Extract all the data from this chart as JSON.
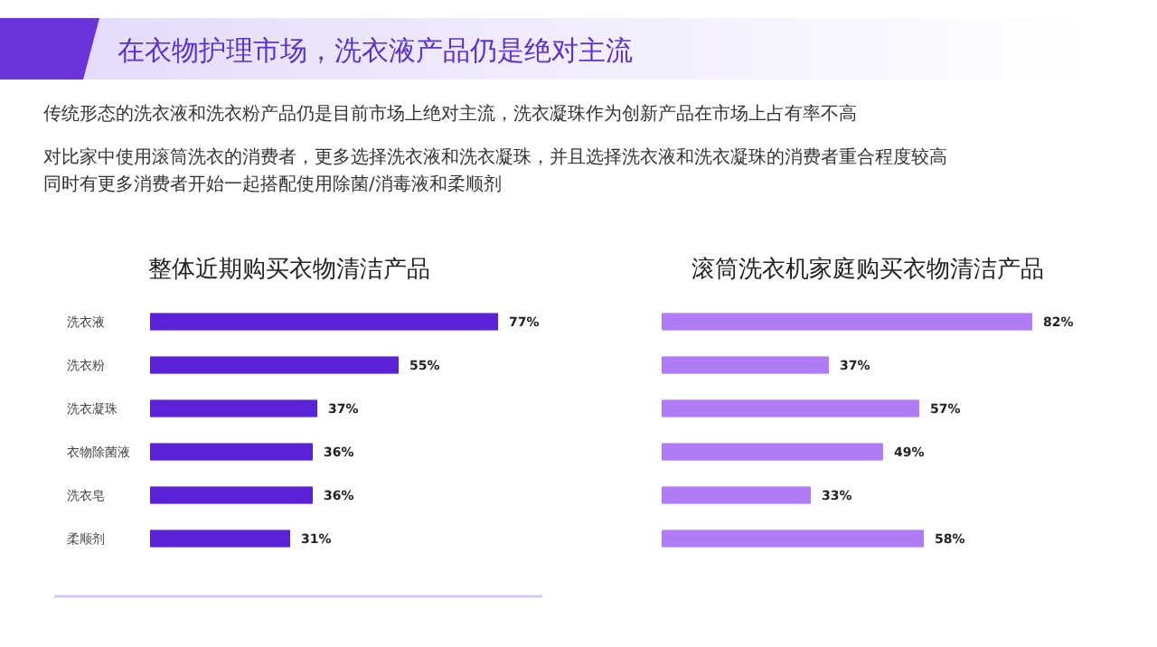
{
  "chart_data": [
    {
      "type": "other",
      "title": "在衣物护理市场，洗衣液产品仍是绝对主流",
      "annotations": [
        "传统形态的洗衣液和洗衣粉产品仍是目前市场上绝对主流，洗衣凝珠作为创新产品在市场上占有率不高",
        "对比家中使用滚筒洗衣的消费者，更多选择洗衣液和洗衣凝珠，并且选择洗衣液和洗衣凝珠的消费者重合程度较高",
        "同时有更多消费者开始一起搭配使用除菌/消毒液和柔顺剂"
      ]
    },
    {
      "type": "bar",
      "orientation": "horizontal",
      "title": "整体近期购买衣物清洁产品",
      "categories": [
        "洗衣液",
        "洗衣粉",
        "洗衣凝珠",
        "衣物除菌液",
        "洗衣皂",
        "柔顺剂"
      ],
      "series": [
        {
          "color": "#5a22d6",
          "values": [
            77,
            55,
            37,
            36,
            36,
            31
          ],
          "value_labels": [
            "77%",
            "55%",
            "37%",
            "36%",
            "36%",
            "31%"
          ]
        }
      ]
    },
    {
      "type": "bar",
      "orientation": "horizontal",
      "title": "滚筒洗衣机家庭购买衣物清洁产品",
      "categories": [
        null,
        null,
        null,
        null,
        null,
        null
      ],
      "series": [
        {
          "color": "#b07cf5",
          "values": [
            82,
            37,
            57,
            49,
            33,
            58
          ],
          "value_labels": [
            "82%",
            "37%",
            "57%",
            "49%",
            "33%",
            "58%"
          ]
        }
      ]
    }
  ]
}
